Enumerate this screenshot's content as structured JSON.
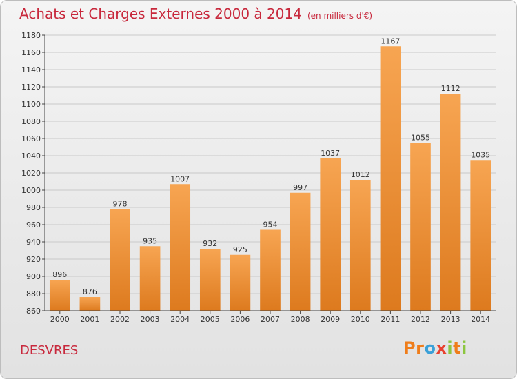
{
  "header": {
    "title": "Achats et Charges Externes 2000 à 2014",
    "unit": "(en milliers d'€)"
  },
  "footer": {
    "commune": "DESVRES",
    "logo": {
      "letters": [
        "P",
        "r",
        "o",
        "x",
        "i",
        "t",
        "i"
      ],
      "colors": [
        "#ef7d1a",
        "#ef7d1a",
        "#3aa0d8",
        "#e8412f",
        "#8cc63f",
        "#ef7d1a",
        "#8cc63f"
      ]
    }
  },
  "colors": {
    "title": "#c8283c",
    "bar_light": "#f7a552",
    "bar_dark": "#dd7a1e",
    "grid": "#c9c9c9"
  },
  "chart_data": {
    "type": "bar",
    "title": "Achats et Charges Externes 2000 à 2014",
    "subtitle": "(en milliers d'€)",
    "categories": [
      "2000",
      "2001",
      "2002",
      "2003",
      "2004",
      "2005",
      "2006",
      "2007",
      "2008",
      "2009",
      "2010",
      "2011",
      "2012",
      "2013",
      "2014"
    ],
    "values": [
      896,
      876,
      978,
      935,
      1007,
      932,
      925,
      954,
      997,
      1037,
      1012,
      1167,
      1055,
      1112,
      1035
    ],
    "ylim": [
      860,
      1180
    ],
    "ytick_step": 20,
    "grid": true
  }
}
